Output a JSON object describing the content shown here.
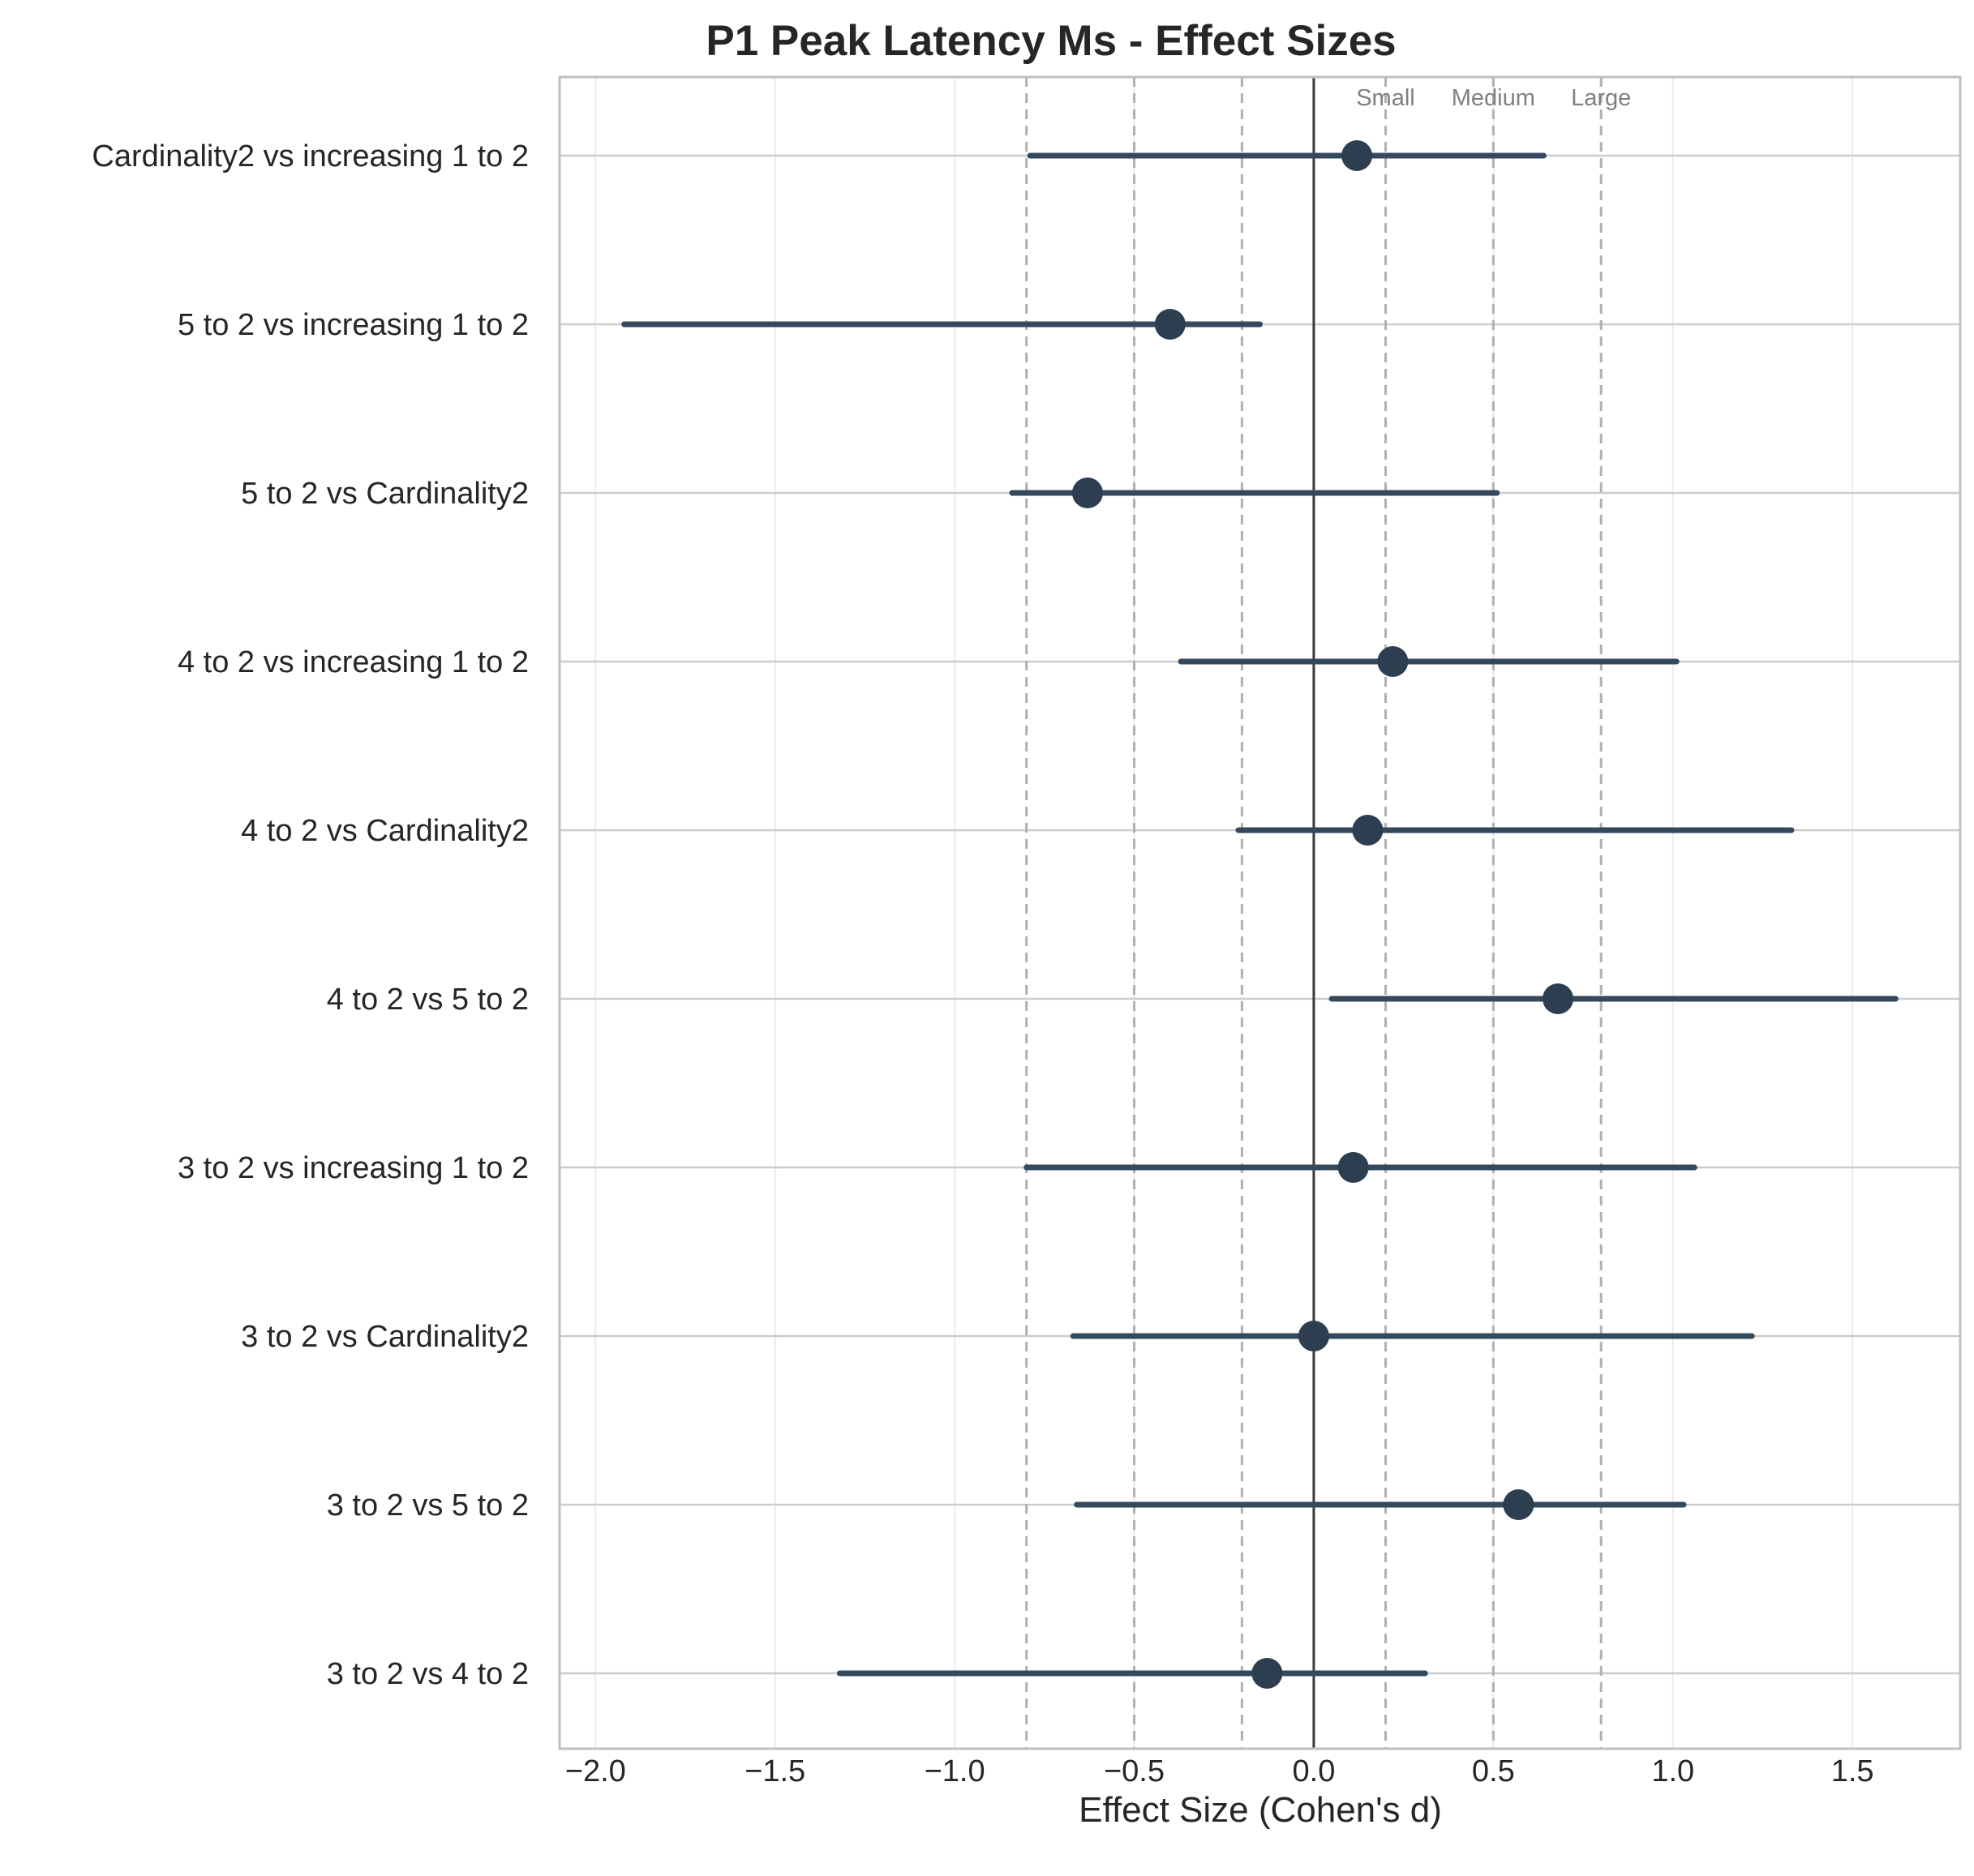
{
  "chart_data": {
    "type": "forest",
    "title": "P1 Peak Latency Ms - Effect Sizes",
    "xlabel": "Effect Size (Cohen's d)",
    "ylabel": "",
    "xlim": [
      -2.1,
      1.8
    ],
    "xticks": [
      -2.0,
      -1.5,
      -1.0,
      -0.5,
      0.0,
      0.5,
      1.0,
      1.5
    ],
    "xtick_labels": [
      "−2.0",
      "−1.5",
      "−1.0",
      "−0.5",
      "0.0",
      "0.5",
      "1.0",
      "1.5"
    ],
    "grid": true,
    "zero_line": 0,
    "threshold_lines": [
      -0.8,
      -0.5,
      -0.2,
      0.2,
      0.5,
      0.8
    ],
    "threshold_labels": [
      {
        "x": 0.2,
        "text": "Small"
      },
      {
        "x": 0.5,
        "text": "Medium"
      },
      {
        "x": 0.8,
        "text": "Large"
      }
    ],
    "marker_color": "#2c3e50",
    "ci_color": "#34495e",
    "threshold_color": "#b0b0b0",
    "rows": [
      {
        "label": "Cardinality2 vs increasing 1 to 2",
        "d": 0.12,
        "ci_low": -0.79,
        "ci_high": 0.64
      },
      {
        "label": "5 to 2 vs increasing 1 to 2",
        "d": -0.4,
        "ci_low": -1.92,
        "ci_high": -0.15
      },
      {
        "label": "5 to 2 vs Cardinality2",
        "d": -0.63,
        "ci_low": -0.84,
        "ci_high": 0.51
      },
      {
        "label": "4 to 2 vs increasing 1 to 2",
        "d": 0.22,
        "ci_low": -0.37,
        "ci_high": 1.01
      },
      {
        "label": "4 to 2 vs Cardinality2",
        "d": 0.15,
        "ci_low": -0.21,
        "ci_high": 1.33
      },
      {
        "label": "4 to 2 vs 5 to 2",
        "d": 0.68,
        "ci_low": 0.05,
        "ci_high": 1.62
      },
      {
        "label": "3 to 2 vs increasing 1 to 2",
        "d": 0.11,
        "ci_low": -0.8,
        "ci_high": 1.06
      },
      {
        "label": "3 to 2 vs Cardinality2",
        "d": 0.0,
        "ci_low": -0.67,
        "ci_high": 1.22
      },
      {
        "label": "3 to 2 vs 5 to 2",
        "d": 0.57,
        "ci_low": -0.66,
        "ci_high": 1.03
      },
      {
        "label": "3 to 2 vs 4 to 2",
        "d": -0.13,
        "ci_low": -1.32,
        "ci_high": 0.31
      }
    ]
  }
}
